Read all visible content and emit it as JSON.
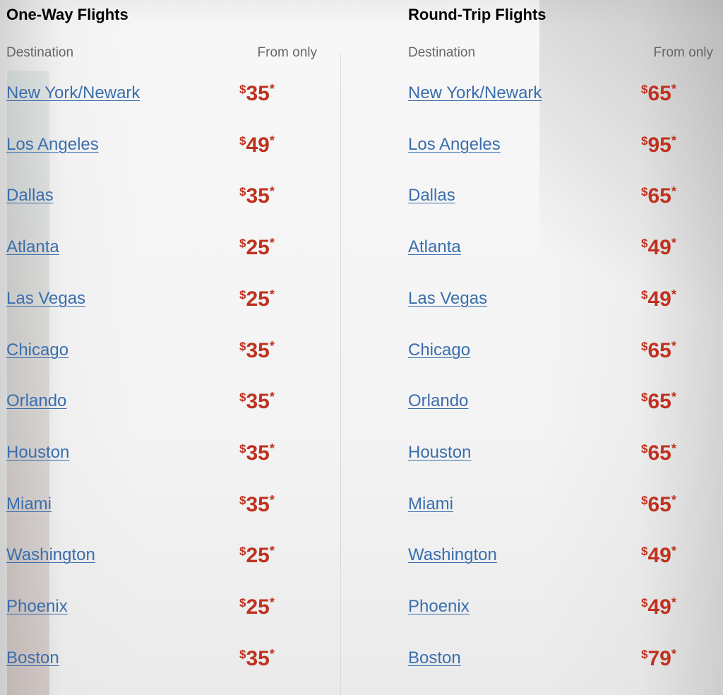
{
  "one_way": {
    "title": "One-Way Flights",
    "col_destination": "Destination",
    "col_price": "From only",
    "rows": [
      {
        "city": "New York/Newark",
        "price": "35"
      },
      {
        "city": "Los Angeles",
        "price": "49"
      },
      {
        "city": "Dallas",
        "price": "35"
      },
      {
        "city": "Atlanta",
        "price": "25"
      },
      {
        "city": "Las Vegas",
        "price": "25"
      },
      {
        "city": "Chicago",
        "price": "35"
      },
      {
        "city": "Orlando",
        "price": "35"
      },
      {
        "city": "Houston",
        "price": "35"
      },
      {
        "city": "Miami",
        "price": "35"
      },
      {
        "city": "Washington",
        "price": "25"
      },
      {
        "city": "Phoenix",
        "price": "25"
      },
      {
        "city": "Boston",
        "price": "35"
      }
    ]
  },
  "round_trip": {
    "title": "Round-Trip Flights",
    "col_destination": "Destination",
    "col_price": "From only",
    "rows": [
      {
        "city": "New York/Newark",
        "price": "65"
      },
      {
        "city": "Los Angeles",
        "price": "95"
      },
      {
        "city": "Dallas",
        "price": "65"
      },
      {
        "city": "Atlanta",
        "price": "49"
      },
      {
        "city": "Las Vegas",
        "price": "49"
      },
      {
        "city": "Chicago",
        "price": "65"
      },
      {
        "city": "Orlando",
        "price": "65"
      },
      {
        "city": "Houston",
        "price": "65"
      },
      {
        "city": "Miami",
        "price": "65"
      },
      {
        "city": "Washington",
        "price": "49"
      },
      {
        "city": "Phoenix",
        "price": "49"
      },
      {
        "city": "Boston",
        "price": "79"
      }
    ]
  },
  "currency_symbol": "$",
  "footnote_marker": "*",
  "colors": {
    "link": "#3a6ead",
    "price": "#c0311f",
    "heading": "#000000",
    "column_header": "#666666"
  }
}
